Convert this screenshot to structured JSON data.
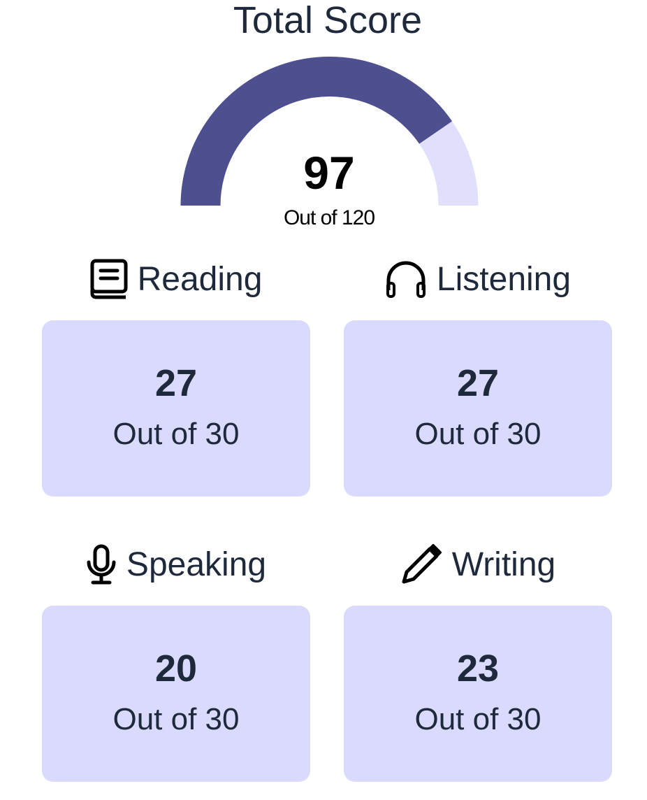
{
  "header": {
    "title": "Total Score"
  },
  "chart_data": {
    "type": "gauge",
    "value": 97,
    "max": 120,
    "value_label": "97",
    "sub_label": "Out of 120",
    "colors": {
      "fill": "#4e4f8e",
      "track": "#e0e0fc"
    }
  },
  "sections": [
    {
      "label": "Reading",
      "icon": "book-icon",
      "score": "27",
      "sub": "Out of 30"
    },
    {
      "label": "Listening",
      "icon": "headphones-icon",
      "score": "27",
      "sub": "Out of 30"
    },
    {
      "label": "Speaking",
      "icon": "microphone-icon",
      "score": "20",
      "sub": "Out of 30"
    },
    {
      "label": "Writing",
      "icon": "pencil-icon",
      "score": "23",
      "sub": "Out of 30"
    }
  ],
  "colors": {
    "card_bg": "#d9dafd",
    "text": "#1e293b"
  }
}
